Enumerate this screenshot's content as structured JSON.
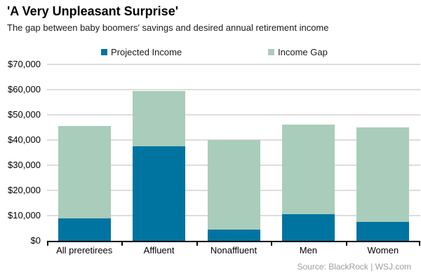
{
  "header": {
    "title": "'A Very Unpleasant Surprise'",
    "subtitle": "The gap between baby boomers' savings and desired annual retirement income"
  },
  "source": "Source: BlackRock  |  WSJ.com",
  "colors": {
    "projected": "#0074a1",
    "gap": "#a9cdba",
    "grid": "#dcdcdc",
    "axis": "#000000",
    "source_text": "#9d9d9d"
  },
  "chart_data": {
    "type": "bar",
    "stacked": true,
    "title": "'A Very Unpleasant Surprise'",
    "subtitle": "The gap between baby boomers' savings and desired annual retirement income",
    "categories": [
      "All preretirees",
      "Affluent",
      "Nonaffluent",
      "Men",
      "Women"
    ],
    "series": [
      {
        "name": "Projected Income",
        "color_key": "projected",
        "values": [
          9000,
          37500,
          4500,
          10500,
          7500
        ]
      },
      {
        "name": "Income Gap",
        "color_key": "gap",
        "values": [
          36500,
          22000,
          35500,
          35500,
          37500
        ]
      }
    ],
    "totals": [
      45500,
      59500,
      40000,
      46000,
      45000
    ],
    "ylim": [
      0,
      70000
    ],
    "ytick_step": 10000,
    "ytick_labels": [
      "$0",
      "$10,000",
      "$20,000",
      "$30,000",
      "$40,000",
      "$50,000",
      "$60,000",
      "$70,000"
    ],
    "grid": true,
    "legend_position": "top"
  }
}
